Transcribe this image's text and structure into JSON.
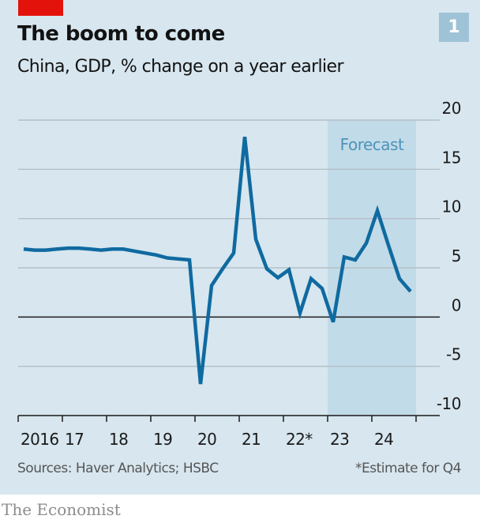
{
  "header": {
    "title": "The boom to come",
    "subtitle": "China, GDP, % change on a year earlier",
    "chart_number": "1"
  },
  "footer": {
    "source": "Sources: Haver Analytics; HSBC",
    "note": "*Estimate for Q4",
    "brand": "The Economist"
  },
  "colors": {
    "line": "#0f6aa0",
    "forecast_band": "#c2dbe8",
    "forecast_label": "#4d94ba",
    "background": "#d7e6ef",
    "accent_red": "#e3120b"
  },
  "chart_data": {
    "type": "line",
    "title": "The boom to come",
    "subtitle": "China, GDP, % change on a year earlier",
    "xlabel": "",
    "ylabel": "",
    "ylim": [
      -10,
      20
    ],
    "yticks": [
      20,
      15,
      10,
      5,
      0,
      -5,
      -10
    ],
    "y_axis_side": "right",
    "grid": true,
    "xtick_labels": [
      "2016",
      "17",
      "18",
      "19",
      "20",
      "21",
      "22*",
      "23",
      "24"
    ],
    "x_start_year": 2016,
    "x_end_year": 2025,
    "annotation": {
      "label": "Forecast",
      "from": "2023Q1",
      "to": "2024Q4"
    },
    "series": [
      {
        "name": "China GDP growth",
        "x": [
          "2016Q1",
          "2016Q2",
          "2016Q3",
          "2016Q4",
          "2017Q1",
          "2017Q2",
          "2017Q3",
          "2017Q4",
          "2018Q1",
          "2018Q2",
          "2018Q3",
          "2018Q4",
          "2019Q1",
          "2019Q2",
          "2019Q3",
          "2019Q4",
          "2020Q1",
          "2020Q2",
          "2020Q3",
          "2020Q4",
          "2021Q1",
          "2021Q2",
          "2021Q3",
          "2021Q4",
          "2022Q1",
          "2022Q2",
          "2022Q3",
          "2022Q4",
          "2023Q1",
          "2023Q2",
          "2023Q3",
          "2023Q4",
          "2024Q1",
          "2024Q2",
          "2024Q3",
          "2024Q4"
        ],
        "values": [
          6.9,
          6.8,
          6.8,
          6.9,
          7.0,
          7.0,
          6.9,
          6.8,
          6.9,
          6.9,
          6.7,
          6.5,
          6.3,
          6.0,
          5.9,
          5.8,
          -6.8,
          3.2,
          4.9,
          6.5,
          18.3,
          7.9,
          4.9,
          4.0,
          4.8,
          0.4,
          3.9,
          2.9,
          -0.5,
          6.1,
          5.8,
          7.5,
          10.8,
          7.3,
          3.9,
          2.6
        ]
      }
    ]
  }
}
